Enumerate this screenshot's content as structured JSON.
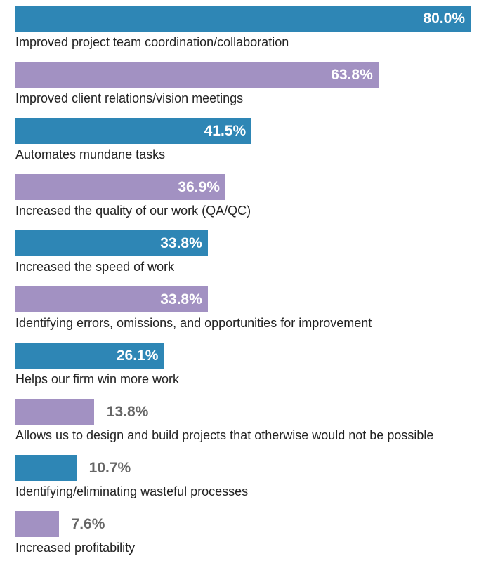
{
  "chart_data": {
    "type": "bar",
    "orientation": "horizontal",
    "categories": [
      "Improved project team coordination/collaboration",
      "Improved client relations/vision meetings",
      "Automates mundane tasks",
      "Increased the quality of our work (QA/QC)",
      "Increased the speed of work",
      "Identifying errors, omissions, and opportunities for improvement",
      "Helps our firm win more work",
      "Allows us to design and build projects that otherwise would not be possible",
      "Identifying/eliminating wasteful processes",
      "Increased profitability"
    ],
    "values": [
      80.0,
      63.8,
      41.5,
      36.9,
      33.8,
      33.8,
      26.1,
      13.8,
      10.7,
      7.6
    ],
    "value_labels": [
      "80.0%",
      "63.8%",
      "41.5%",
      "36.9%",
      "33.8%",
      "33.8%",
      "26.1%",
      "13.8%",
      "10.7%",
      "7.6%"
    ],
    "colors": [
      "#2e86b5",
      "#a291c2",
      "#2e86b5",
      "#a291c2",
      "#2e86b5",
      "#a291c2",
      "#2e86b5",
      "#a291c2",
      "#2e86b5",
      "#a291c2"
    ]
  }
}
